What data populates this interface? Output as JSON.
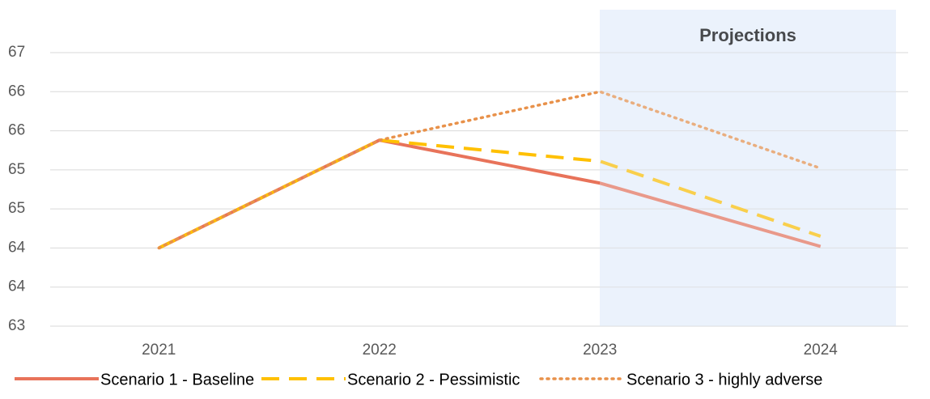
{
  "chart_data": {
    "type": "line",
    "annotation": "Projections",
    "categories": [
      "2021",
      "2022",
      "2023",
      "2024"
    ],
    "series": [
      {
        "name": "Scenario 1 - Baseline",
        "color": "#e8735a",
        "dash": "solid",
        "values": [
          64.0,
          65.38,
          64.83,
          64.02
        ]
      },
      {
        "name": "Scenario 2 - Pessimistic",
        "color": "#ffc000",
        "dash": "dashed",
        "values": [
          64.0,
          65.38,
          65.11,
          64.15
        ]
      },
      {
        "name": "Scenario 3 - highly adverse",
        "color": "#e8914a",
        "dash": "dotted",
        "values": [
          64.0,
          65.38,
          66.0,
          65.02
        ]
      }
    ],
    "ylim": [
      63,
      66.5
    ],
    "yticks": [
      63,
      {
        "value": 63.5,
        "label": "64"
      },
      64,
      {
        "value": 64.5,
        "label": "65"
      },
      65,
      {
        "value": 65.5,
        "label": "66"
      },
      66,
      {
        "value": 66.5,
        "label": "67"
      }
    ],
    "grid": true
  }
}
